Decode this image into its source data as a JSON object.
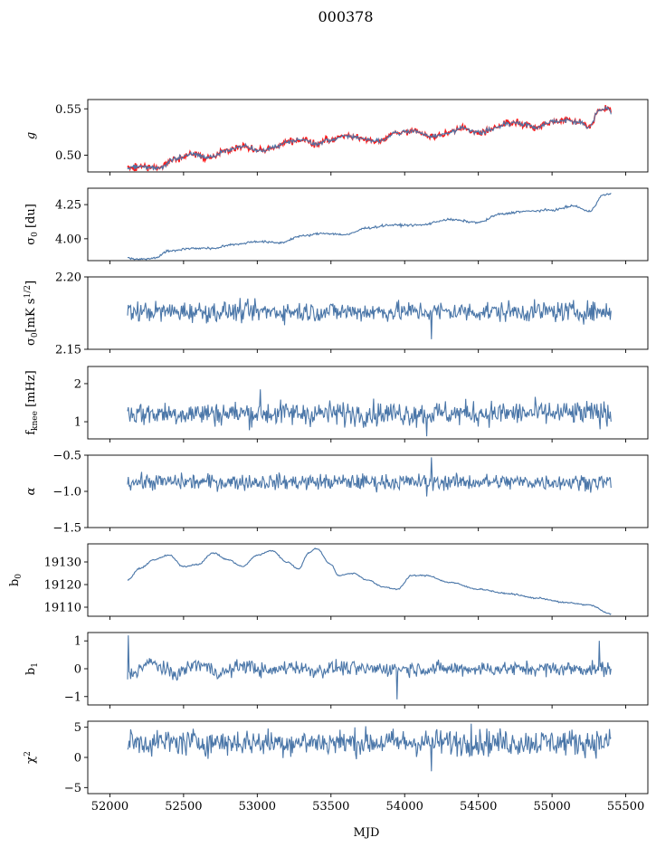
{
  "figure": {
    "title": "000378",
    "xlabel": "MJD"
  },
  "colors": {
    "series": "#4a76a8",
    "highlight": "#ff0000"
  },
  "chart_data": {
    "type": "line",
    "shared_x": true,
    "xlim": [
      51850,
      55650
    ],
    "x_range": [
      52120,
      55400
    ],
    "xticks": [
      52000,
      52500,
      53000,
      53500,
      54000,
      54500,
      55000,
      55500
    ],
    "xtick_labels": [
      "52000",
      "52500",
      "53000",
      "53500",
      "54000",
      "54500",
      "55000",
      "55500"
    ],
    "panels": [
      {
        "id": "g",
        "ylabel": "g",
        "ylim": [
          0.482,
          0.56
        ],
        "yticks": [
          0.5,
          0.55
        ],
        "ytick_labels": [
          "0.50",
          "0.55"
        ],
        "kind": "smooth",
        "noise": 0.0012,
        "overlay_red": true,
        "keypoints": [
          [
            52120,
            0.486
          ],
          [
            52200,
            0.488
          ],
          [
            52330,
            0.486
          ],
          [
            52450,
            0.497
          ],
          [
            52560,
            0.501
          ],
          [
            52680,
            0.498
          ],
          [
            52800,
            0.505
          ],
          [
            52900,
            0.51
          ],
          [
            53020,
            0.505
          ],
          [
            53100,
            0.508
          ],
          [
            53200,
            0.514
          ],
          [
            53300,
            0.517
          ],
          [
            53400,
            0.512
          ],
          [
            53500,
            0.516
          ],
          [
            53600,
            0.521
          ],
          [
            53720,
            0.518
          ],
          [
            53820,
            0.515
          ],
          [
            53950,
            0.524
          ],
          [
            54050,
            0.526
          ],
          [
            54180,
            0.52
          ],
          [
            54300,
            0.524
          ],
          [
            54400,
            0.53
          ],
          [
            54500,
            0.524
          ],
          [
            54600,
            0.528
          ],
          [
            54700,
            0.535
          ],
          [
            54800,
            0.534
          ],
          [
            54900,
            0.53
          ],
          [
            55000,
            0.537
          ],
          [
            55120,
            0.537
          ],
          [
            55200,
            0.535
          ],
          [
            55250,
            0.53
          ],
          [
            55320,
            0.548
          ],
          [
            55380,
            0.551
          ],
          [
            55400,
            0.547
          ]
        ]
      },
      {
        "id": "sigma0_du",
        "ylabel": "σ0 [du]",
        "ylim": [
          3.84,
          4.37
        ],
        "yticks": [
          4.0,
          4.25
        ],
        "ytick_labels": [
          "4.00",
          "4.25"
        ],
        "kind": "smooth",
        "noise": 0.004,
        "keypoints": [
          [
            52120,
            3.86
          ],
          [
            52200,
            3.85
          ],
          [
            52300,
            3.86
          ],
          [
            52400,
            3.91
          ],
          [
            52550,
            3.93
          ],
          [
            52700,
            3.93
          ],
          [
            52850,
            3.96
          ],
          [
            53000,
            3.98
          ],
          [
            53150,
            3.97
          ],
          [
            53300,
            4.02
          ],
          [
            53450,
            4.04
          ],
          [
            53600,
            4.03
          ],
          [
            53750,
            4.08
          ],
          [
            53900,
            4.1
          ],
          [
            54100,
            4.1
          ],
          [
            54300,
            4.14
          ],
          [
            54500,
            4.12
          ],
          [
            54650,
            4.18
          ],
          [
            54800,
            4.2
          ],
          [
            55000,
            4.21
          ],
          [
            55150,
            4.24
          ],
          [
            55250,
            4.2
          ],
          [
            55350,
            4.32
          ],
          [
            55400,
            4.33
          ]
        ]
      },
      {
        "id": "sigma0_mK",
        "ylabel": "σ0[mK s^1/2]",
        "ylim": [
          2.15,
          2.2
        ],
        "yticks": [
          2.15,
          2.2
        ],
        "ytick_labels": [
          "2.15",
          "2.20"
        ],
        "kind": "noise",
        "base": 2.176,
        "noise": 0.0035,
        "spikes": [
          [
            54180,
            2.157
          ]
        ]
      },
      {
        "id": "fknee",
        "ylabel": "f_knee [mHz]",
        "ylim": [
          0.55,
          2.45
        ],
        "yticks": [
          1,
          2
        ],
        "ytick_labels": [
          "1",
          "2"
        ],
        "kind": "noise",
        "base": 1.22,
        "noise": 0.16,
        "spikes": [
          [
            53020,
            1.85
          ],
          [
            54150,
            0.62
          ]
        ]
      },
      {
        "id": "alpha",
        "ylabel": "α",
        "ylim": [
          -1.5,
          -0.5
        ],
        "yticks": [
          -1.5,
          -1.0,
          -0.5
        ],
        "ytick_labels": [
          "−1.5",
          "−1.0",
          "−0.5"
        ],
        "kind": "noise",
        "base": -0.87,
        "noise": 0.055,
        "spikes": [
          [
            54180,
            -0.53
          ],
          [
            54150,
            -1.07
          ]
        ]
      },
      {
        "id": "b0",
        "ylabel": "b0",
        "ylim": [
          19106,
          19138
        ],
        "yticks": [
          19110,
          19120,
          19130
        ],
        "ytick_labels": [
          "19110",
          "19120",
          "19130"
        ],
        "kind": "smooth",
        "noise": 0.15,
        "keypoints": [
          [
            52120,
            19122
          ],
          [
            52200,
            19127
          ],
          [
            52300,
            19131
          ],
          [
            52400,
            19133
          ],
          [
            52500,
            19128
          ],
          [
            52600,
            19129
          ],
          [
            52700,
            19134
          ],
          [
            52800,
            19131
          ],
          [
            52900,
            19128
          ],
          [
            53000,
            19133
          ],
          [
            53100,
            19135
          ],
          [
            53200,
            19130
          ],
          [
            53280,
            19127
          ],
          [
            53350,
            19134
          ],
          [
            53400,
            19136
          ],
          [
            53500,
            19129
          ],
          [
            53550,
            19124
          ],
          [
            53650,
            19125
          ],
          [
            53750,
            19122
          ],
          [
            53850,
            19119
          ],
          [
            53950,
            19118
          ],
          [
            54050,
            19124
          ],
          [
            54150,
            19124
          ],
          [
            54300,
            19121
          ],
          [
            54500,
            19118
          ],
          [
            54700,
            19116
          ],
          [
            54900,
            19114
          ],
          [
            55100,
            19112
          ],
          [
            55250,
            19111
          ],
          [
            55400,
            19107
          ]
        ]
      },
      {
        "id": "b1",
        "ylabel": "b1",
        "ylim": [
          -1.3,
          1.3
        ],
        "yticks": [
          -1,
          0,
          1
        ],
        "ytick_labels": [
          "−1",
          "0",
          "1"
        ],
        "kind": "noise",
        "base": 0.0,
        "noise": 0.13,
        "wave": 0.22,
        "spikes": [
          [
            52125,
            1.2
          ],
          [
            53950,
            -1.1
          ],
          [
            55320,
            1.0
          ]
        ]
      },
      {
        "id": "chi2",
        "ylabel": "χ2",
        "ylim": [
          -6,
          6
        ],
        "yticks": [
          -5,
          0,
          5
        ],
        "ytick_labels": [
          "−5",
          "0",
          "5"
        ],
        "kind": "noise",
        "base": 2.5,
        "noise": 1.1,
        "spikes": [
          [
            54180,
            -2.3
          ],
          [
            54450,
            5.6
          ]
        ]
      }
    ]
  }
}
